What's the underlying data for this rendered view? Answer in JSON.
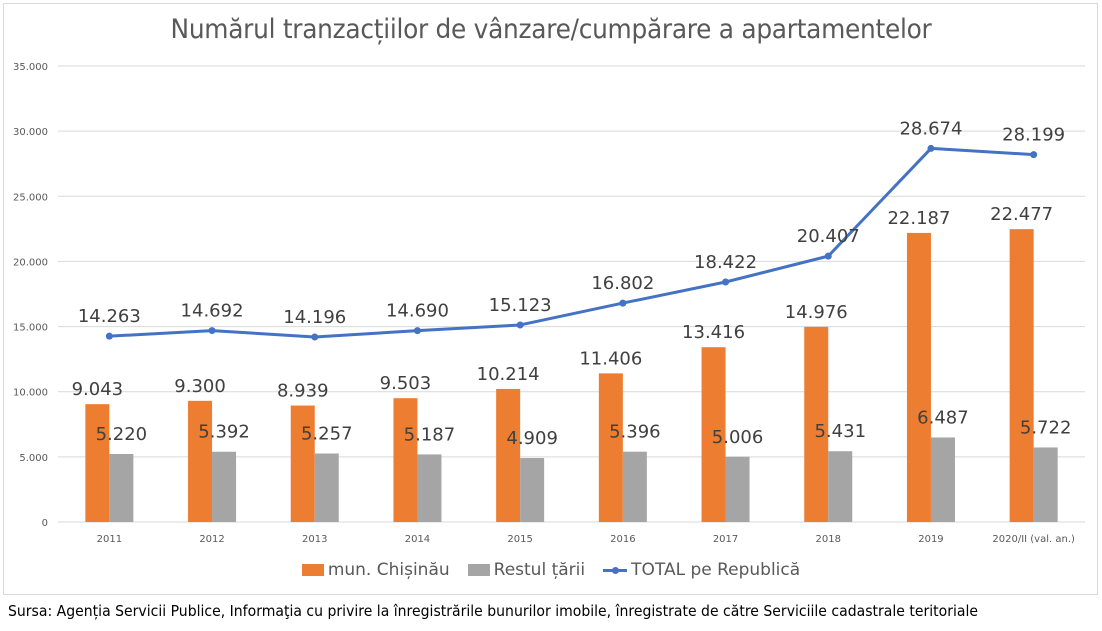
{
  "chart_data": {
    "type": "bar",
    "title": "Numărul tranzacțiilor de vânzare/cumpărare a apartamentelor",
    "xlabel": "",
    "ylabel": "",
    "ylim": [
      0,
      35000
    ],
    "yticks": [
      0,
      5000,
      10000,
      15000,
      20000,
      25000,
      30000,
      35000
    ],
    "ytick_labels": [
      "0",
      "5.000",
      "10.000",
      "15.000",
      "20.000",
      "25.000",
      "30.000",
      "35.000"
    ],
    "grid": true,
    "legend_position": "bottom",
    "categories": [
      "2011",
      "2012",
      "2013",
      "2014",
      "2015",
      "2016",
      "2017",
      "2018",
      "2019",
      "2020/II (val. an.)"
    ],
    "series": [
      {
        "name": "mun. Chișinău",
        "kind": "bar",
        "color": "#ed7d31",
        "values": [
          9043,
          9300,
          8939,
          9503,
          10214,
          11406,
          13416,
          14976,
          22187,
          22477
        ],
        "labels": [
          "9.043",
          "9.300",
          "8.939",
          "9.503",
          "10.214",
          "11.406",
          "13.416",
          "14.976",
          "22.187",
          "22.477"
        ]
      },
      {
        "name": "Restul țării",
        "kind": "bar",
        "color": "#a5a5a5",
        "values": [
          5220,
          5392,
          5257,
          5187,
          4909,
          5396,
          5006,
          5431,
          6487,
          5722
        ],
        "labels": [
          "5.220",
          "5.392",
          "5.257",
          "5.187",
          "4.909",
          "5.396",
          "5.006",
          "5.431",
          "6.487",
          "5.722"
        ]
      },
      {
        "name": "TOTAL pe Republică",
        "kind": "line",
        "color": "#4472c4",
        "values": [
          14263,
          14692,
          14196,
          14690,
          15123,
          16802,
          18422,
          20407,
          28674,
          28199
        ],
        "labels": [
          "14.263",
          "14.692",
          "14.196",
          "14.690",
          "15.123",
          "16.802",
          "18.422",
          "20.407",
          "28.674",
          "28.199"
        ]
      }
    ]
  },
  "source_note": "Sursa: Agenția Servicii Publice, Informaţia cu privire la înregistrările bunurilor imobile, înregistrate de către Serviciile cadastrale teritoriale"
}
